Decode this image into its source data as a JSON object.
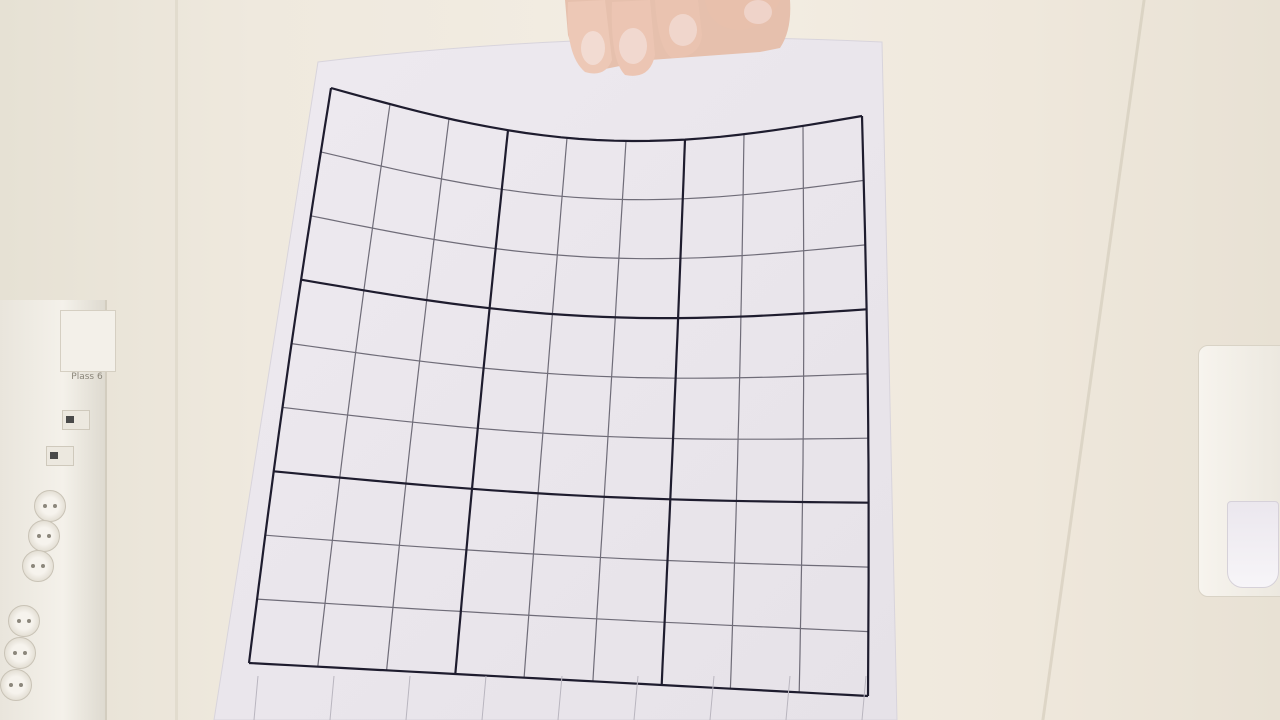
{
  "scene": {
    "description_tags": [
      "hand",
      "paper-sheet",
      "distorted-grid",
      "wall",
      "power-trunking",
      "wall-lamp"
    ],
    "trunking_label": "Plass 6",
    "grid": {
      "major_divisions": 3,
      "minor_per_major": 3,
      "rows_major": 3,
      "rows_minor_per_major": 3
    },
    "colors": {
      "wall": "#f1ebe1",
      "paper": "#ece8ec",
      "grid_line_major": "#1e1c2e",
      "grid_line_minor": "#6f6c78",
      "skin": "#e9c5b2"
    }
  }
}
